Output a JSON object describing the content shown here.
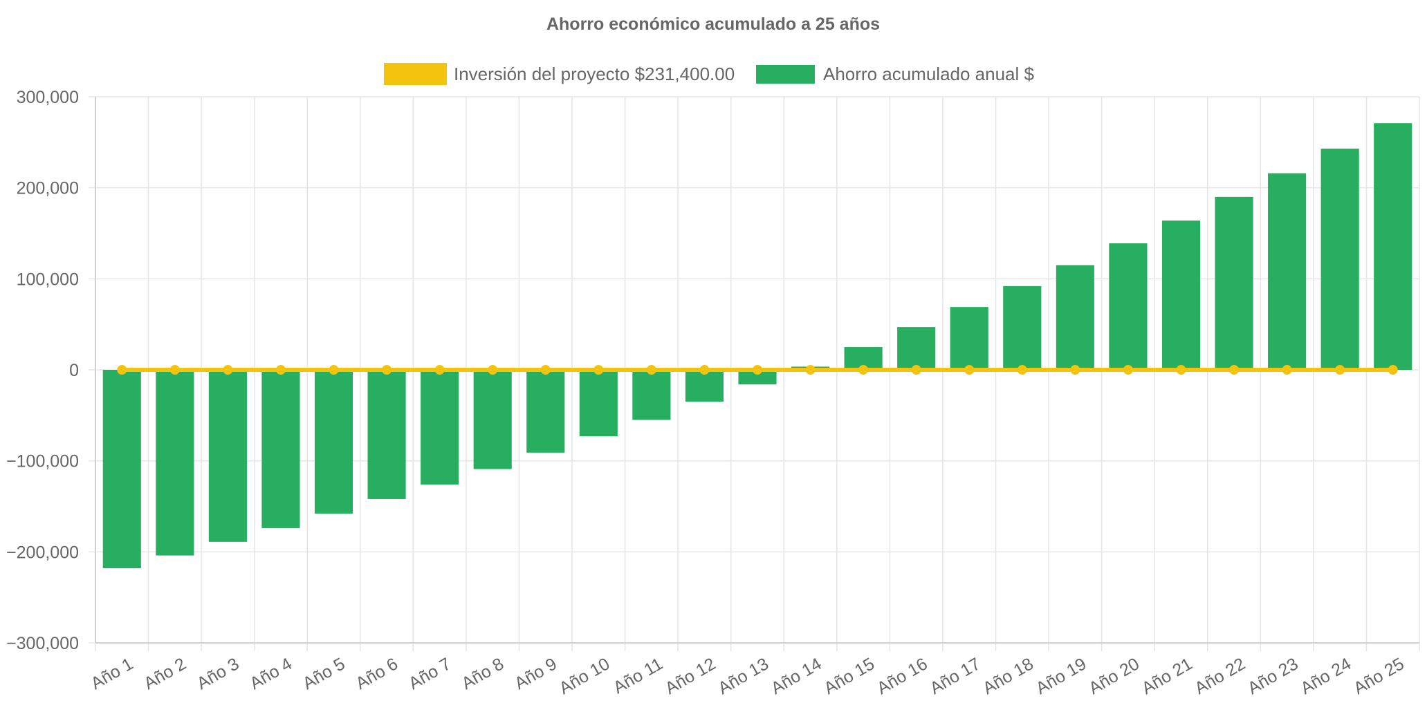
{
  "chart_data": {
    "type": "bar",
    "title": "Ahorro económico acumulado a 25 años",
    "categories": [
      "Año 1",
      "Año 2",
      "Año 3",
      "Año 4",
      "Año 5",
      "Año 6",
      "Año 7",
      "Año 8",
      "Año 9",
      "Año 10",
      "Año 11",
      "Año 12",
      "Año 13",
      "Año 14",
      "Año 15",
      "Año 16",
      "Año 17",
      "Año 18",
      "Año 19",
      "Año 20",
      "Año 21",
      "Año 22",
      "Año 23",
      "Año 24",
      "Año 25"
    ],
    "series": [
      {
        "name": "Inversión del proyecto $231,400.00",
        "type": "line",
        "color": "#f2c30f",
        "values": [
          0,
          0,
          0,
          0,
          0,
          0,
          0,
          0,
          0,
          0,
          0,
          0,
          0,
          0,
          0,
          0,
          0,
          0,
          0,
          0,
          0,
          0,
          0,
          0,
          0
        ]
      },
      {
        "name": "Ahorro acumulado anual $",
        "type": "bar",
        "color": "#27ae60",
        "values": [
          -218000,
          -204000,
          -189000,
          -174000,
          -158000,
          -142000,
          -126000,
          -109000,
          -91000,
          -73000,
          -55000,
          -35000,
          -16000,
          3500,
          25000,
          47000,
          69000,
          92000,
          115000,
          139000,
          164000,
          190000,
          216000,
          243000,
          271000
        ]
      }
    ],
    "ylim": [
      -300000,
      300000
    ],
    "yticks": [
      "300,000",
      "200,000",
      "100,000",
      "0",
      "−100,000",
      "−200,000",
      "−300,000"
    ],
    "ytick_values": [
      300000,
      200000,
      100000,
      0,
      -100000,
      -200000,
      -300000
    ],
    "grid": true,
    "legend_position": "top"
  }
}
